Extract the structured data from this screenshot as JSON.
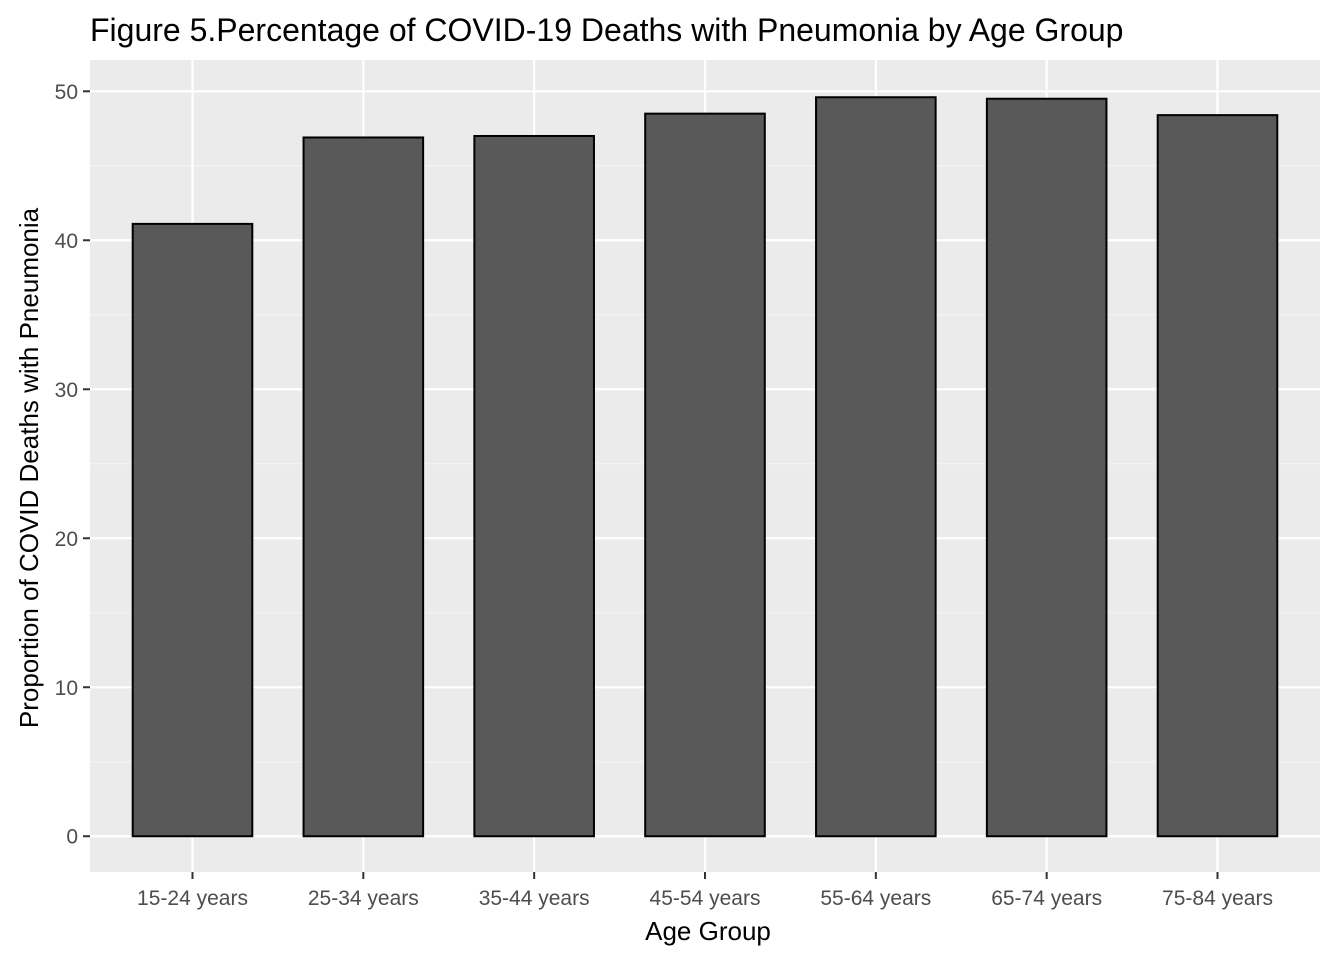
{
  "chart_data": {
    "type": "bar",
    "title": "Figure 5.Percentage of COVID-19 Deaths with Pneumonia by Age Group",
    "xlabel": "Age Group",
    "ylabel": "Proportion of COVID Deaths with Pneumonia",
    "categories": [
      "15-24 years",
      "25-34 years",
      "35-44 years",
      "45-54 years",
      "55-64 years",
      "65-74 years",
      "75-84 years"
    ],
    "values": [
      41.1,
      46.9,
      47.0,
      48.5,
      49.6,
      49.5,
      48.4
    ],
    "ylim": [
      -2.4,
      52.1
    ],
    "yticks": [
      0,
      10,
      20,
      30,
      40,
      50
    ],
    "ytick_labels": [
      "0",
      "10",
      "20",
      "30",
      "40",
      "50"
    ],
    "grid": true,
    "legend": "none",
    "colors": {
      "panel_background": "#ebebeb",
      "grid_major": "#ffffff",
      "grid_minor": "#f5f5f5",
      "bar_fill": "#595959",
      "bar_outline": "#000000",
      "tick_label": "#4d4d4d",
      "tick_mark": "#333333"
    }
  }
}
